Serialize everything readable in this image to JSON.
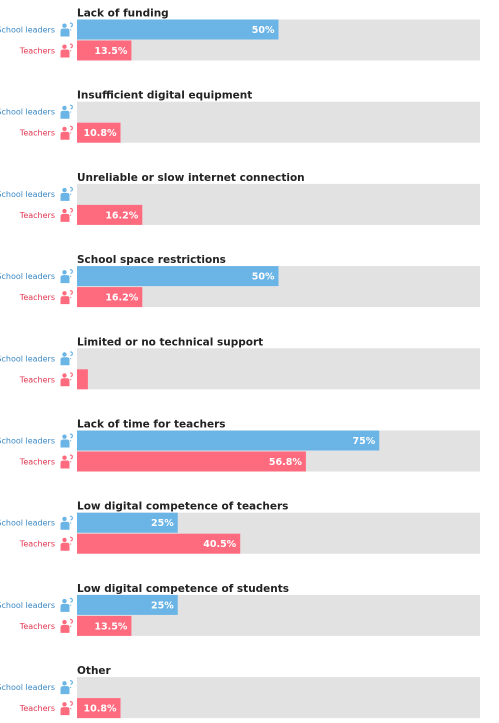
{
  "chart_data": {
    "type": "bar",
    "orientation": "horizontal",
    "xlim": [
      0,
      100
    ],
    "grid": false,
    "legend": "none",
    "series": [
      {
        "name": "School leaders",
        "color": "#6ab4e6",
        "label_color": "#3a88c4",
        "icon": "school-leader-person-icon"
      },
      {
        "name": "Teachers",
        "color": "#ff6b7e",
        "label_color": "#e0364f",
        "icon": "teacher-person-icon"
      }
    ],
    "categories": [
      {
        "title": "Lack of funding",
        "values": [
          50,
          13.5
        ],
        "labels": [
          "50%",
          "13.5%"
        ]
      },
      {
        "title": "Insufficient digital equipment",
        "values": [
          0,
          10.8
        ],
        "labels": [
          "",
          "10.8%"
        ]
      },
      {
        "title": "Unreliable or slow internet connection",
        "values": [
          0,
          16.2
        ],
        "labels": [
          "",
          "16.2%"
        ]
      },
      {
        "title": "School space restrictions",
        "values": [
          50,
          16.2
        ],
        "labels": [
          "50%",
          "16.2%"
        ]
      },
      {
        "title": "Limited or no technical support",
        "values": [
          0,
          2.7
        ],
        "labels": [
          "",
          ""
        ]
      },
      {
        "title": "Lack of time for teachers",
        "values": [
          75,
          56.8
        ],
        "labels": [
          "75%",
          "56.8%"
        ]
      },
      {
        "title": "Low digital competence of teachers",
        "values": [
          25,
          40.5
        ],
        "labels": [
          "25%",
          "40.5%"
        ]
      },
      {
        "title": "Low digital competence of students",
        "values": [
          25,
          13.5
        ],
        "labels": [
          "25%",
          "13.5%"
        ]
      },
      {
        "title": "Other",
        "values": [
          0,
          10.8
        ],
        "labels": [
          "",
          "10.8%"
        ]
      }
    ]
  },
  "colors": {
    "track": "#e2e2e2",
    "title_text": "#222222",
    "value_text": "#ffffff"
  }
}
